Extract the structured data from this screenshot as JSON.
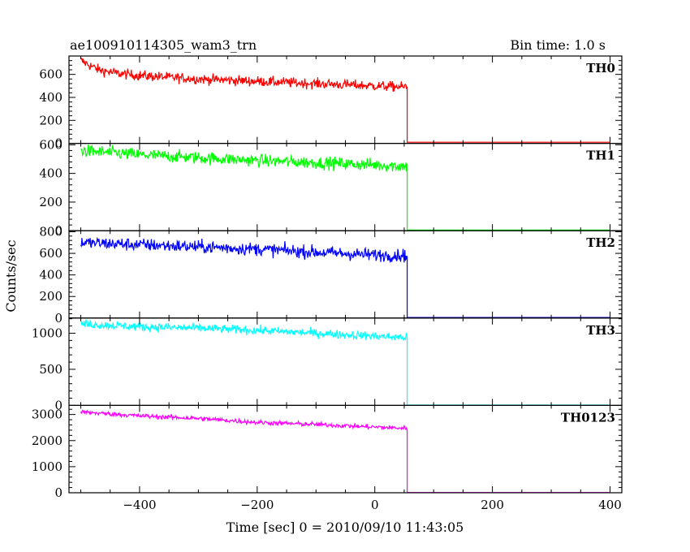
{
  "chart_data": {
    "type": "line",
    "title": "ae100910114305_wam3_trn",
    "bin_time_label": "Bin time: 1.0 s",
    "xlabel": "Time [sec] 0 = 2010/09/10 11:43:05",
    "ylabel": "Counts/sec",
    "xlim": [
      -520,
      420
    ],
    "x_ticks": [
      -400,
      -200,
      0,
      200,
      400
    ],
    "x_tick_labels": [
      "−400",
      "−200",
      "0",
      "200",
      "400"
    ],
    "grid": false,
    "x_start": -500,
    "x_cutoff": 55,
    "x_end": 400,
    "panels": [
      {
        "name": "TH0",
        "color": "#ff0000",
        "ylim": [
          0,
          760
        ],
        "y_ticks": [
          0,
          200,
          400,
          600
        ],
        "y_tick_labels": [
          "0",
          "200",
          "400",
          "600"
        ],
        "trend": {
          "x": [
            -500,
            -470,
            -440,
            -400,
            -300,
            -200,
            -100,
            0,
            55
          ],
          "y": [
            720,
            640,
            610,
            590,
            560,
            540,
            520,
            500,
            490
          ]
        },
        "noise": 22,
        "after_cutoff": 10
      },
      {
        "name": "TH1",
        "color": "#00ff00",
        "ylim": [
          0,
          610
        ],
        "y_ticks": [
          0,
          200,
          400,
          600
        ],
        "y_tick_labels": [
          "0",
          "200",
          "400",
          "600"
        ],
        "trend": {
          "x": [
            -500,
            -400,
            -300,
            -200,
            -100,
            0,
            55
          ],
          "y": [
            560,
            530,
            510,
            490,
            475,
            460,
            450
          ]
        },
        "noise": 22,
        "after_cutoff": 5
      },
      {
        "name": "TH2",
        "color": "#0000ff",
        "ylim": [
          0,
          810
        ],
        "y_ticks": [
          0,
          200,
          400,
          600,
          800
        ],
        "y_tick_labels": [
          "0",
          "200",
          "400",
          "600",
          "800"
        ],
        "trend": {
          "x": [
            -500,
            -400,
            -300,
            -200,
            -100,
            0,
            55
          ],
          "y": [
            700,
            680,
            660,
            640,
            610,
            585,
            580
          ]
        },
        "noise": 30,
        "after_cutoff": 5
      },
      {
        "name": "TH3",
        "color": "#00ffff",
        "ylim": [
          0,
          1210
        ],
        "y_ticks": [
          0,
          500,
          1000
        ],
        "y_tick_labels": [
          "0",
          "500",
          "1000"
        ],
        "trend": {
          "x": [
            -500,
            -400,
            -300,
            -200,
            -100,
            0,
            55
          ],
          "y": [
            1130,
            1090,
            1070,
            1040,
            1000,
            960,
            940
          ]
        },
        "noise": 30,
        "after_cutoff": 5
      },
      {
        "name": "TH0123",
        "color": "#ff00ff",
        "ylim": [
          0,
          3350
        ],
        "y_ticks": [
          0,
          1000,
          2000,
          3000
        ],
        "y_tick_labels": [
          "0",
          "1000",
          "2000",
          "3000"
        ],
        "trend": {
          "x": [
            -500,
            -400,
            -300,
            -200,
            -100,
            0,
            55
          ],
          "y": [
            3100,
            2950,
            2850,
            2700,
            2620,
            2520,
            2470
          ]
        },
        "noise": 45,
        "after_cutoff": 10
      }
    ]
  }
}
